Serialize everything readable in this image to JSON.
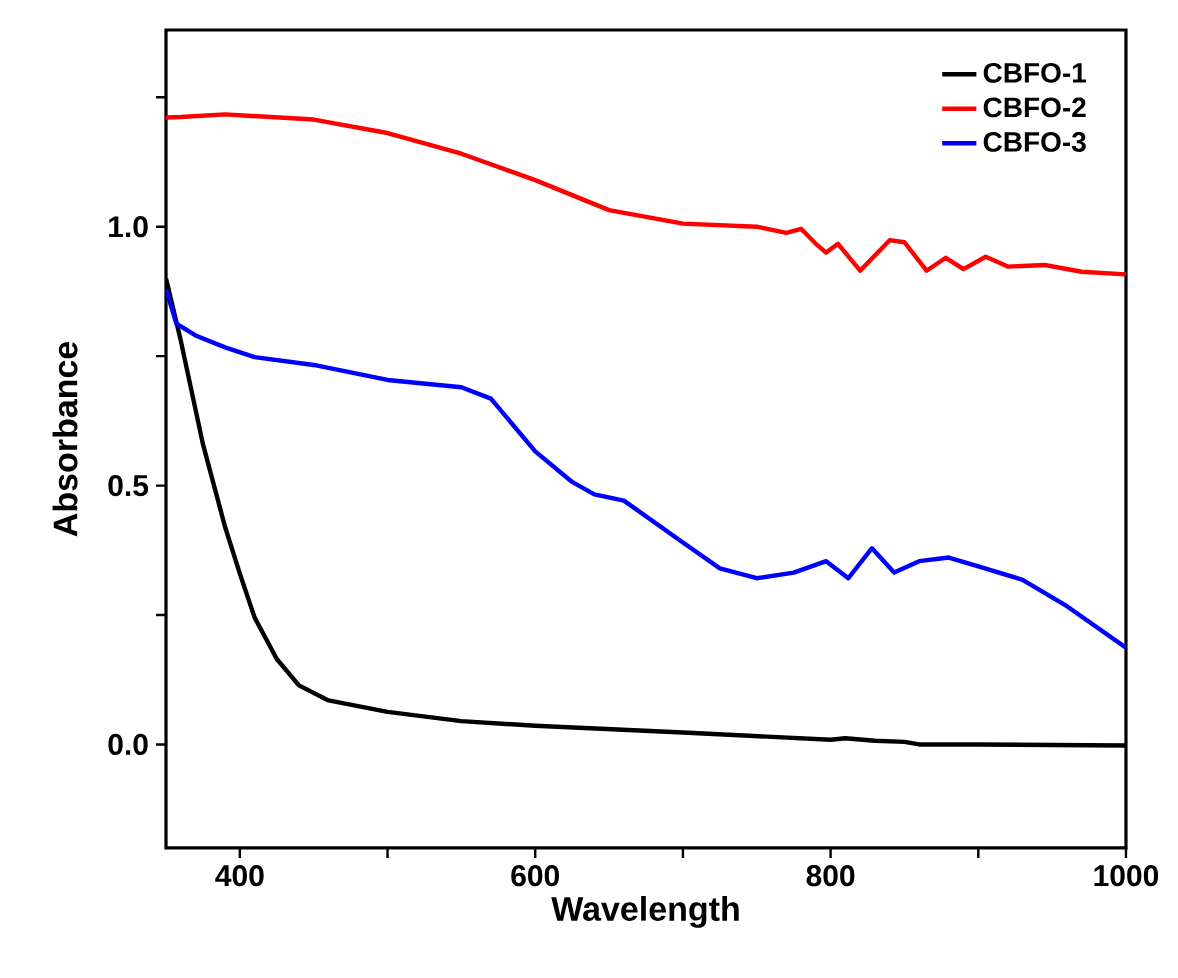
{
  "chart_data": {
    "type": "line",
    "xlabel": "Wavelength",
    "ylabel": "Absorbance",
    "xlim": [
      350,
      1000
    ],
    "ylim": [
      -0.2,
      1.38
    ],
    "xticks": [
      400,
      {
        "value": 500,
        "label": null
      },
      600,
      {
        "value": 700,
        "label": null
      },
      800,
      {
        "value": 900,
        "label": null
      },
      1000
    ],
    "yticks": [
      {
        "value": 0,
        "label": "0.0"
      },
      {
        "value": 0.25,
        "label": null
      },
      {
        "value": 0.5,
        "label": "0.5"
      },
      {
        "value": 0.75,
        "label": null
      },
      {
        "value": 1,
        "label": "1.0"
      },
      {
        "value": 1.25,
        "label": null
      }
    ],
    "legend": "top right",
    "grid": false,
    "marker": "none",
    "line_style": "solid",
    "series": [
      {
        "name": "CBFO-1",
        "color": "#000000",
        "x": [
          350,
          360,
          375,
          390,
          400,
          410,
          425,
          440,
          460,
          500,
          550,
          600,
          700,
          800,
          810,
          830,
          850,
          860,
          900,
          1000
        ],
        "values": [
          0.9,
          0.78,
          0.58,
          0.42,
          0.33,
          0.245,
          0.165,
          0.114,
          0.085,
          0.063,
          0.045,
          0.036,
          0.023,
          0.009,
          0.012,
          0.007,
          0.005,
          0.0,
          0.0,
          -0.002
        ]
      },
      {
        "name": "CBFO-2",
        "color": "#ff0000",
        "x": [
          350,
          360,
          390,
          450,
          500,
          550,
          600,
          650,
          700,
          750,
          770,
          780,
          790,
          797,
          805,
          820,
          840,
          850,
          865,
          878,
          890,
          905,
          920,
          945,
          970,
          1000
        ],
        "values": [
          1.211,
          1.212,
          1.217,
          1.207,
          1.181,
          1.141,
          1.09,
          1.032,
          1.006,
          1.0,
          0.988,
          0.996,
          0.967,
          0.95,
          0.967,
          0.915,
          0.974,
          0.97,
          0.915,
          0.94,
          0.918,
          0.942,
          0.923,
          0.926,
          0.913,
          0.908
        ]
      },
      {
        "name": "CBFO-3",
        "color": "#0000ff",
        "x": [
          350,
          357,
          370,
          390,
          410,
          450,
          500,
          550,
          570,
          585,
          600,
          625,
          640,
          660,
          700,
          725,
          750,
          775,
          797,
          812,
          828,
          843,
          860,
          880,
          900,
          930,
          960,
          1000
        ],
        "values": [
          0.879,
          0.813,
          0.79,
          0.767,
          0.748,
          0.733,
          0.704,
          0.69,
          0.668,
          0.617,
          0.566,
          0.507,
          0.483,
          0.471,
          0.39,
          0.34,
          0.321,
          0.332,
          0.354,
          0.321,
          0.379,
          0.332,
          0.354,
          0.361,
          0.344,
          0.318,
          0.267,
          0.187
        ]
      }
    ]
  }
}
